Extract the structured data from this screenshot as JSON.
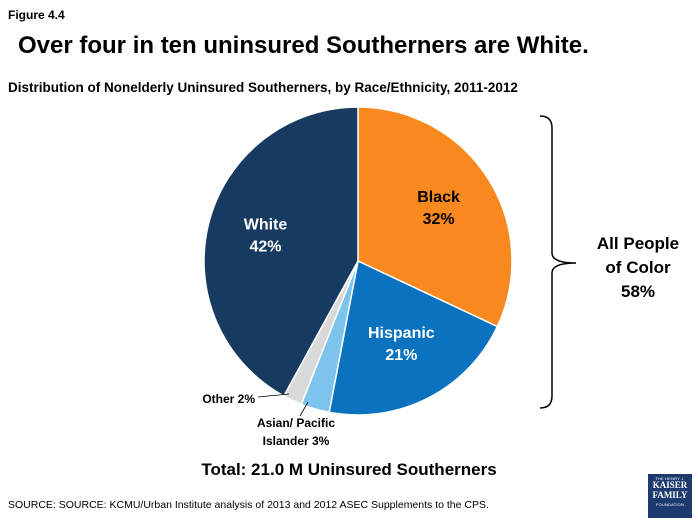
{
  "figure_label": "Figure 4.4",
  "headline": "Over four in ten uninsured Southerners are White.",
  "subtitle": "Distribution of Nonelderly Uninsured Southerners, by Race/Ethnicity, 2011-2012",
  "total": "Total: 21.0 M Uninsured Southerners",
  "source": "SOURCE: SOURCE: KCMU/Urban Institute analysis of 2013 and 2012 ASEC Supplements to the CPS.",
  "logo": {
    "line1": "THE HENRY J.",
    "line2": "KAISER",
    "line3": "FAMILY",
    "line4": "FOUNDATION"
  },
  "bracket_label": [
    "All People",
    "of Color",
    "58%"
  ],
  "chart_data": {
    "type": "pie",
    "title": "Distribution of Nonelderly Uninsured Southerners, by Race/Ethnicity, 2011-2012",
    "slices": [
      {
        "name": "Black",
        "value": 32,
        "label": "32%",
        "color": "#f7891f"
      },
      {
        "name": "Hispanic",
        "value": 21,
        "label": "21%",
        "color": "#0a72bf"
      },
      {
        "name": "Asian/ Pacific Islander",
        "value": 3,
        "label": "3%",
        "color": "#7cc3ed"
      },
      {
        "name": "Other",
        "value": 2,
        "label": "2%",
        "color": "#d9d9d9"
      },
      {
        "name": "White",
        "value": 42,
        "label": "42%",
        "color": "#173a60"
      }
    ]
  }
}
